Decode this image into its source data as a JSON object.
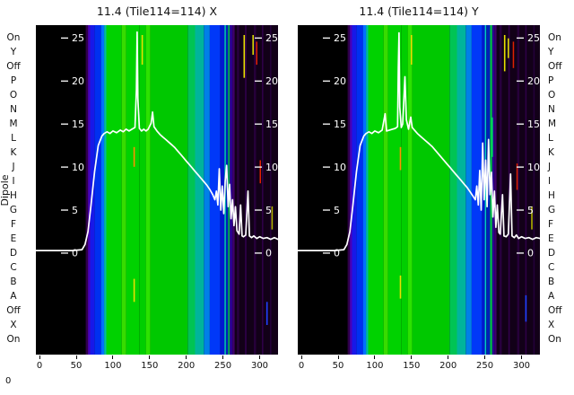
{
  "chart_data": {
    "type": "heatmap",
    "y_axis_label": "Dipole",
    "corner_label": "0",
    "x_ticks": [
      0,
      50,
      100,
      150,
      200,
      250,
      300
    ],
    "x_range": [
      -5,
      325
    ],
    "y_range": [
      -11.8,
      26.5
    ],
    "inner_y_ticks": [
      25,
      20,
      15,
      10,
      5,
      0
    ],
    "dipole_labels": [
      "On",
      "Y",
      "Off",
      "P",
      "O",
      "N",
      "M",
      "L",
      "K",
      "J",
      "I",
      "H",
      "G",
      "F",
      "E",
      "D",
      "C",
      "B",
      "A",
      "Off",
      "X",
      "On"
    ],
    "panels": [
      {
        "title": "11.4 (Tile114=114) X",
        "bands": [
          [
            -5,
            63,
            "#000000"
          ],
          [
            63,
            66,
            "#30004a"
          ],
          [
            66,
            69,
            "#4a00b8"
          ],
          [
            69,
            75,
            "#1818e8"
          ],
          [
            75,
            84,
            "#0030f0"
          ],
          [
            84,
            88,
            "#0070ff"
          ],
          [
            88,
            91,
            "#00b8a8"
          ],
          [
            91,
            112,
            "#00d200"
          ],
          [
            112,
            118,
            "#38dc00"
          ],
          [
            118,
            136,
            "#00d200"
          ],
          [
            136,
            145,
            "#00ce00"
          ],
          [
            145,
            151,
            "#2ce200"
          ],
          [
            151,
            202,
            "#00c800"
          ],
          [
            202,
            212,
            "#00c454"
          ],
          [
            212,
            224,
            "#00b49c"
          ],
          [
            224,
            232,
            "#0080e8"
          ],
          [
            232,
            246,
            "#0038f8"
          ],
          [
            246,
            252,
            "#0018d0"
          ],
          [
            252,
            254,
            "#00ccc0"
          ],
          [
            254,
            257,
            "#0020b8"
          ],
          [
            257,
            259,
            "#00c048"
          ],
          [
            259,
            263,
            "#2a0090"
          ],
          [
            263,
            266,
            "#40006a"
          ],
          [
            266,
            325,
            "#120018"
          ],
          [
            269,
            272,
            "#28003e"
          ],
          [
            280,
            282,
            "#30004c"
          ],
          [
            292,
            295,
            "#26003a"
          ],
          [
            303,
            305,
            "#2e0046"
          ],
          [
            314,
            316,
            "#24003a"
          ]
        ],
        "marks": [
          [
            139,
            2,
            0.03,
            0.12,
            "#e8e000"
          ],
          [
            128,
            2,
            0.37,
            0.43,
            "#ff9000"
          ],
          [
            128,
            2,
            0.77,
            0.84,
            "#e8e000"
          ],
          [
            278,
            2,
            0.03,
            0.16,
            "#e8e000"
          ],
          [
            290,
            2,
            0.03,
            0.09,
            "#d8d800"
          ],
          [
            295,
            1.6,
            0.05,
            0.12,
            "#e02000"
          ],
          [
            300,
            1.6,
            0.41,
            0.48,
            "#e02000"
          ],
          [
            309,
            2,
            0.84,
            0.91,
            "#2040ff"
          ],
          [
            316,
            2,
            0.55,
            0.62,
            "#b0b000"
          ]
        ],
        "curve": [
          [
            -5,
            0.3
          ],
          [
            20,
            0.3
          ],
          [
            45,
            0.3
          ],
          [
            58,
            0.4
          ],
          [
            62,
            1.0
          ],
          [
            66,
            2.5
          ],
          [
            70,
            5.5
          ],
          [
            75,
            9.5
          ],
          [
            80,
            12.5
          ],
          [
            85,
            13.6
          ],
          [
            88,
            13.9
          ],
          [
            92,
            14.1
          ],
          [
            96,
            13.9
          ],
          [
            100,
            14.2
          ],
          [
            105,
            14.0
          ],
          [
            110,
            14.3
          ],
          [
            114,
            14.1
          ],
          [
            118,
            14.4
          ],
          [
            122,
            14.2
          ],
          [
            126,
            14.4
          ],
          [
            130,
            14.6
          ],
          [
            132,
            19.0
          ],
          [
            133,
            25.7
          ],
          [
            134,
            18.0
          ],
          [
            136,
            14.5
          ],
          [
            139,
            14.2
          ],
          [
            142,
            14.4
          ],
          [
            145,
            14.2
          ],
          [
            148,
            14.4
          ],
          [
            152,
            15.1
          ],
          [
            154,
            16.4
          ],
          [
            156,
            14.7
          ],
          [
            160,
            14.2
          ],
          [
            164,
            13.8
          ],
          [
            168,
            13.5
          ],
          [
            172,
            13.2
          ],
          [
            176,
            12.9
          ],
          [
            180,
            12.6
          ],
          [
            184,
            12.3
          ],
          [
            188,
            11.9
          ],
          [
            192,
            11.5
          ],
          [
            196,
            11.1
          ],
          [
            200,
            10.7
          ],
          [
            204,
            10.3
          ],
          [
            208,
            9.9
          ],
          [
            212,
            9.5
          ],
          [
            216,
            9.1
          ],
          [
            220,
            8.7
          ],
          [
            224,
            8.3
          ],
          [
            228,
            7.9
          ],
          [
            232,
            7.4
          ],
          [
            236,
            6.8
          ],
          [
            239,
            6.2
          ],
          [
            241,
            7.2
          ],
          [
            243,
            5.6
          ],
          [
            245,
            9.8
          ],
          [
            247,
            5.0
          ],
          [
            249,
            7.8
          ],
          [
            251,
            4.6
          ],
          [
            253,
            8.4
          ],
          [
            255,
            10.2
          ],
          [
            257,
            5.4
          ],
          [
            259,
            8.0
          ],
          [
            261,
            4.0
          ],
          [
            263,
            6.2
          ],
          [
            265,
            3.2
          ],
          [
            267,
            5.4
          ],
          [
            269,
            2.6
          ],
          [
            272,
            2.2
          ],
          [
            274,
            5.6
          ],
          [
            276,
            2.0
          ],
          [
            278,
            1.9
          ],
          [
            281,
            2.1
          ],
          [
            284,
            7.2
          ],
          [
            286,
            2.0
          ],
          [
            289,
            1.8
          ],
          [
            292,
            2.0
          ],
          [
            296,
            1.7
          ],
          [
            300,
            1.9
          ],
          [
            305,
            1.7
          ],
          [
            310,
            1.8
          ],
          [
            315,
            1.6
          ],
          [
            320,
            1.8
          ],
          [
            325,
            1.6
          ]
        ]
      },
      {
        "title": "11.4 (Tile114=114) Y",
        "bands": [
          [
            -5,
            63,
            "#000000"
          ],
          [
            63,
            66,
            "#30004a"
          ],
          [
            66,
            69,
            "#4a00b8"
          ],
          [
            69,
            75,
            "#1818e8"
          ],
          [
            75,
            84,
            "#0030f0"
          ],
          [
            84,
            88,
            "#0070ff"
          ],
          [
            88,
            91,
            "#00b8a8"
          ],
          [
            91,
            112,
            "#00d200"
          ],
          [
            112,
            118,
            "#38dc00"
          ],
          [
            118,
            136,
            "#00d200"
          ],
          [
            136,
            145,
            "#00ce00"
          ],
          [
            145,
            151,
            "#2ce200"
          ],
          [
            151,
            202,
            "#00c800"
          ],
          [
            202,
            212,
            "#00c454"
          ],
          [
            212,
            224,
            "#00b49c"
          ],
          [
            224,
            232,
            "#0080e8"
          ],
          [
            232,
            246,
            "#0038f8"
          ],
          [
            246,
            250,
            "#0018d0"
          ],
          [
            250,
            252,
            "#00ccc0"
          ],
          [
            252,
            257,
            "#0020b8"
          ],
          [
            257,
            260,
            "#00c048"
          ],
          [
            260,
            263,
            "#2a0090"
          ],
          [
            263,
            266,
            "#40006a"
          ],
          [
            266,
            325,
            "#120018"
          ],
          [
            270,
            273,
            "#28003e"
          ],
          [
            282,
            284,
            "#30004c"
          ],
          [
            294,
            297,
            "#26003a"
          ],
          [
            305,
            307,
            "#2e0046"
          ],
          [
            316,
            318,
            "#24003a"
          ]
        ],
        "marks": [
          [
            149,
            2,
            0.03,
            0.12,
            "#e8e000"
          ],
          [
            134,
            2,
            0.37,
            0.44,
            "#ff9000"
          ],
          [
            134,
            2,
            0.76,
            0.83,
            "#e8e000"
          ],
          [
            259,
            2,
            0.28,
            0.4,
            "#00e060"
          ],
          [
            276,
            2,
            0.03,
            0.14,
            "#e8e000"
          ],
          [
            281,
            2,
            0.04,
            0.1,
            "#d8d800"
          ],
          [
            288,
            1.6,
            0.05,
            0.13,
            "#e02000"
          ],
          [
            293,
            1.6,
            0.42,
            0.5,
            "#e02000"
          ],
          [
            305,
            2,
            0.82,
            0.9,
            "#2040ff"
          ],
          [
            313,
            2,
            0.55,
            0.62,
            "#b0b000"
          ]
        ],
        "curve": [
          [
            -5,
            0.3
          ],
          [
            20,
            0.3
          ],
          [
            45,
            0.3
          ],
          [
            58,
            0.4
          ],
          [
            62,
            1.0
          ],
          [
            66,
            2.5
          ],
          [
            70,
            5.5
          ],
          [
            75,
            9.5
          ],
          [
            80,
            12.5
          ],
          [
            85,
            13.6
          ],
          [
            88,
            13.9
          ],
          [
            92,
            14.1
          ],
          [
            96,
            13.9
          ],
          [
            100,
            14.2
          ],
          [
            105,
            14.0
          ],
          [
            110,
            14.3
          ],
          [
            114,
            16.2
          ],
          [
            116,
            14.2
          ],
          [
            120,
            14.3
          ],
          [
            124,
            14.4
          ],
          [
            128,
            14.5
          ],
          [
            131,
            14.7
          ],
          [
            132,
            21.5
          ],
          [
            133,
            25.6
          ],
          [
            134,
            17.0
          ],
          [
            136,
            14.6
          ],
          [
            138,
            15.0
          ],
          [
            141,
            20.5
          ],
          [
            143,
            15.5
          ],
          [
            146,
            14.4
          ],
          [
            149,
            15.8
          ],
          [
            151,
            14.6
          ],
          [
            154,
            14.3
          ],
          [
            158,
            13.9
          ],
          [
            162,
            13.6
          ],
          [
            166,
            13.3
          ],
          [
            170,
            13.0
          ],
          [
            174,
            12.7
          ],
          [
            178,
            12.4
          ],
          [
            182,
            12.0
          ],
          [
            186,
            11.6
          ],
          [
            190,
            11.2
          ],
          [
            194,
            10.8
          ],
          [
            198,
            10.4
          ],
          [
            202,
            10.0
          ],
          [
            206,
            9.6
          ],
          [
            210,
            9.2
          ],
          [
            214,
            8.8
          ],
          [
            218,
            8.4
          ],
          [
            222,
            8.0
          ],
          [
            226,
            7.6
          ],
          [
            230,
            7.1
          ],
          [
            234,
            6.6
          ],
          [
            237,
            6.2
          ],
          [
            239,
            7.8
          ],
          [
            241,
            5.6
          ],
          [
            243,
            9.6
          ],
          [
            245,
            5.0
          ],
          [
            247,
            12.8
          ],
          [
            249,
            6.2
          ],
          [
            251,
            10.8
          ],
          [
            253,
            5.4
          ],
          [
            255,
            13.2
          ],
          [
            257,
            6.8
          ],
          [
            259,
            9.4
          ],
          [
            261,
            4.2
          ],
          [
            263,
            7.2
          ],
          [
            265,
            3.0
          ],
          [
            267,
            5.6
          ],
          [
            269,
            2.4
          ],
          [
            271,
            2.2
          ],
          [
            274,
            6.8
          ],
          [
            276,
            2.0
          ],
          [
            279,
            1.9
          ],
          [
            282,
            2.2
          ],
          [
            285,
            9.2
          ],
          [
            287,
            2.0
          ],
          [
            290,
            1.8
          ],
          [
            293,
            2.1
          ],
          [
            296,
            1.7
          ],
          [
            300,
            1.9
          ],
          [
            305,
            1.7
          ],
          [
            310,
            1.8
          ],
          [
            315,
            1.6
          ],
          [
            320,
            1.8
          ],
          [
            325,
            1.7
          ]
        ]
      }
    ]
  }
}
